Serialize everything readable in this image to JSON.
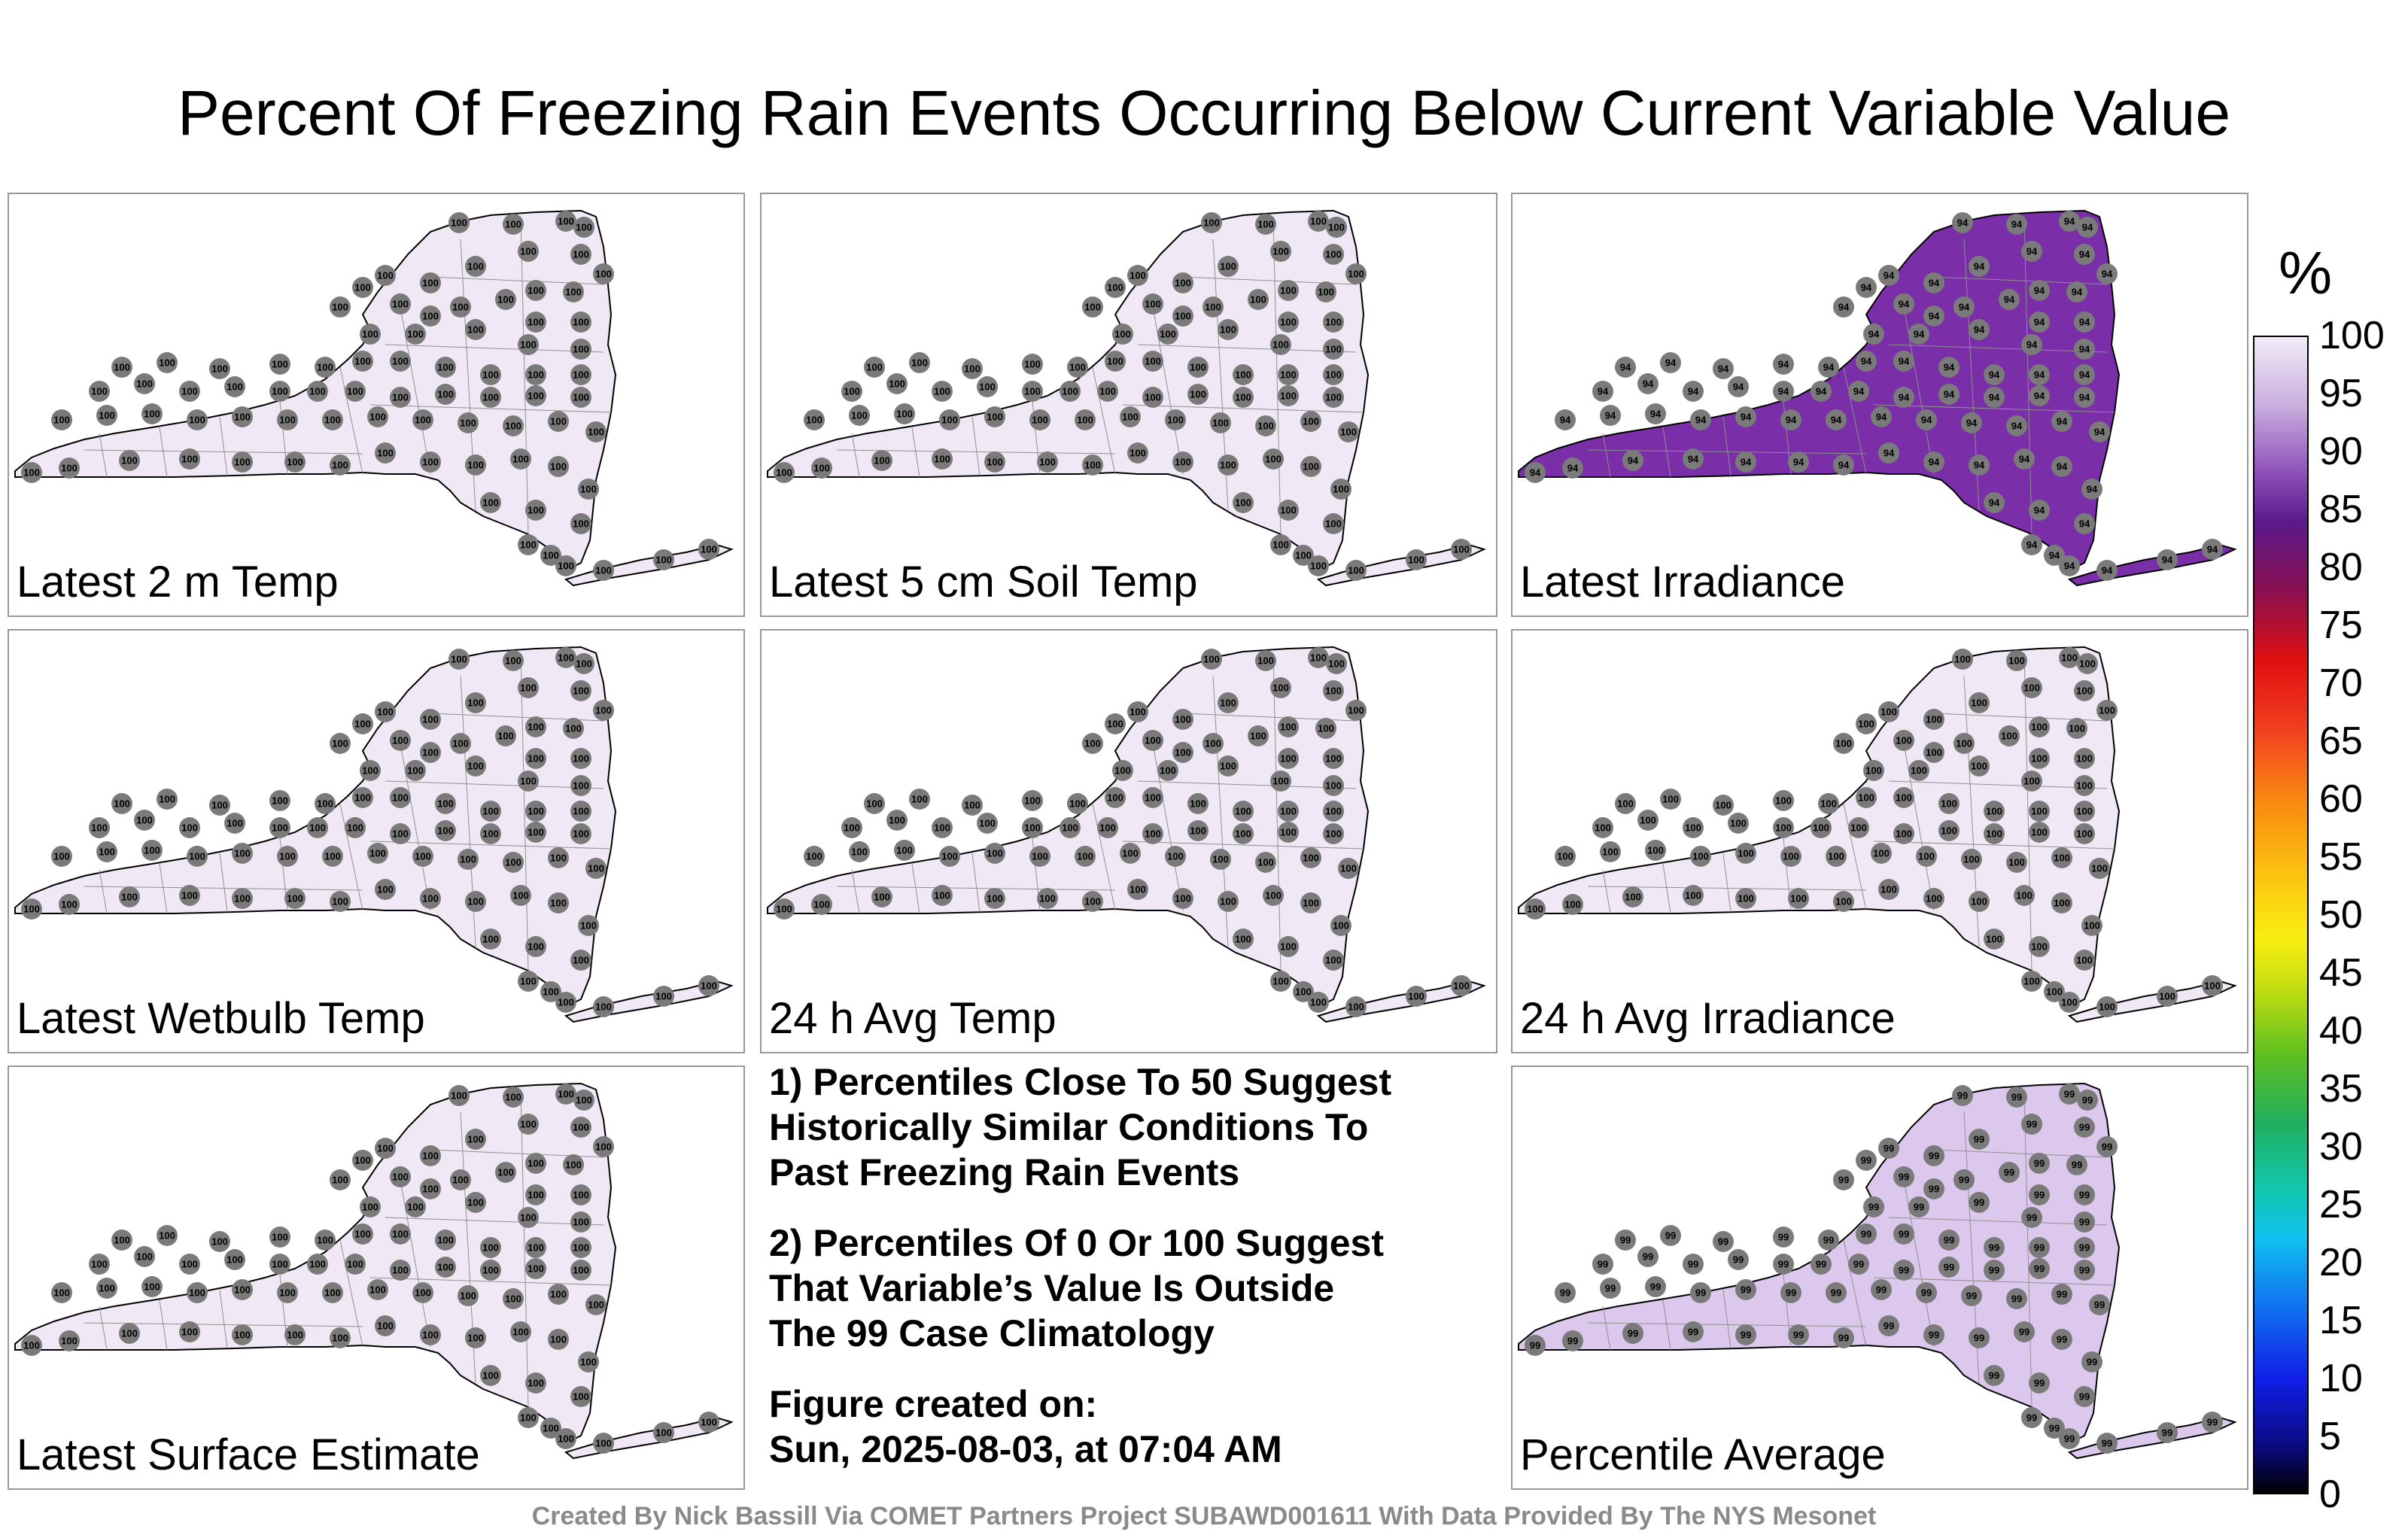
{
  "title": "Percent Of Freezing Rain Events Occurring Below Current Variable Value",
  "panels": [
    {
      "label": "Latest 2 m Temp",
      "fill": "#f0e9f5",
      "value": "100"
    },
    {
      "label": "Latest 5 cm Soil Temp",
      "fill": "#f0e9f5",
      "value": "100"
    },
    {
      "label": "Latest Irradiance",
      "fill": "#7a2ea8",
      "value": "94"
    },
    {
      "label": "Latest Wetbulb Temp",
      "fill": "#f0e9f5",
      "value": "100"
    },
    {
      "label": "24 h Avg Temp",
      "fill": "#f0e9f5",
      "value": "100"
    },
    {
      "label": "24 h Avg Irradiance",
      "fill": "#f0e9f5",
      "value": "100"
    },
    {
      "label": "Latest Surface Estimate",
      "fill": "#f0e9f5",
      "value": "100"
    },
    {
      "label": "Percentile Average",
      "fill": "#dcc8ec",
      "value": "99"
    }
  ],
  "notes": {
    "note1": "1) Percentiles Close To 50 Suggest\nHistorically Similar Conditions To\nPast Freezing Rain Events",
    "note2": "2) Percentiles Of 0 Or 100 Suggest\nThat Variable’s Value Is Outside\nThe 99 Case Climatology",
    "created": "Figure created on:\nSun, 2025-08-03, at 07:04 AM"
  },
  "colorbar": {
    "unit": "%",
    "ticks": [
      "100",
      "95",
      "90",
      "85",
      "80",
      "75",
      "70",
      "65",
      "60",
      "55",
      "50",
      "45",
      "40",
      "35",
      "30",
      "25",
      "20",
      "15",
      "10",
      "5",
      "0"
    ]
  },
  "credit": "Created By Nick Bassill Via COMET Partners Project SUBAWD001611 With Data Provided By The NYS Mesonet"
}
